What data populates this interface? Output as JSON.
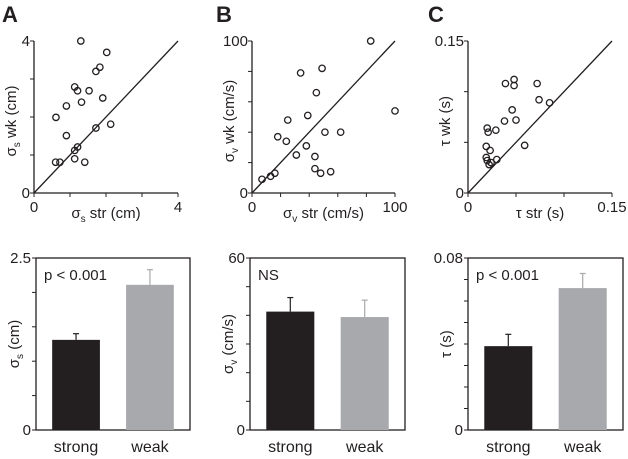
{
  "panel_labels": [
    "A",
    "B",
    "C"
  ],
  "chart_data": [
    {
      "type": "scatter",
      "panel": "A",
      "xlabel_symbol": "σ",
      "xlabel_sub": "s",
      "xlabel_rest": " str (cm)",
      "ylabel_symbol": "σ",
      "ylabel_sub": "s",
      "ylabel_rest": " wk (cm)",
      "xlim": [
        0,
        4
      ],
      "ylim": [
        0,
        4
      ],
      "xticks": [
        "0",
        "4"
      ],
      "yticks": [
        "0",
        "4"
      ],
      "minor_ticks": 4,
      "identity_line": true,
      "points": [
        [
          1.3,
          4.0
        ],
        [
          2.02,
          3.7
        ],
        [
          1.83,
          3.31
        ],
        [
          1.72,
          3.2
        ],
        [
          1.13,
          2.79
        ],
        [
          1.21,
          2.69
        ],
        [
          1.53,
          2.69
        ],
        [
          1.32,
          2.39
        ],
        [
          1.91,
          2.5
        ],
        [
          0.9,
          2.29
        ],
        [
          0.61,
          1.99
        ],
        [
          1.72,
          1.71
        ],
        [
          2.13,
          1.81
        ],
        [
          0.9,
          1.51
        ],
        [
          1.21,
          1.21
        ],
        [
          1.13,
          1.12
        ],
        [
          1.13,
          0.9
        ],
        [
          1.41,
          0.81
        ],
        [
          0.6,
          0.81
        ],
        [
          0.72,
          0.81
        ]
      ]
    },
    {
      "type": "scatter",
      "panel": "B",
      "xlabel_symbol": "σ",
      "xlabel_sub": "v",
      "xlabel_rest": " str (cm/s)",
      "ylabel_symbol": "σ",
      "ylabel_sub": "v",
      "ylabel_rest": " wk (cm/s)",
      "xlim": [
        0,
        100
      ],
      "ylim": [
        0,
        100
      ],
      "xticks": [
        "0",
        "100"
      ],
      "yticks": [
        "0",
        "100"
      ],
      "minor_ticks": 5,
      "identity_line": true,
      "points": [
        [
          83,
          100
        ],
        [
          100,
          54
        ],
        [
          34,
          79
        ],
        [
          49,
          82
        ],
        [
          45,
          66
        ],
        [
          25,
          48
        ],
        [
          39,
          51
        ],
        [
          18,
          37
        ],
        [
          24,
          34
        ],
        [
          51,
          40
        ],
        [
          62,
          40
        ],
        [
          38,
          31
        ],
        [
          31,
          25
        ],
        [
          44,
          24
        ],
        [
          44,
          16
        ],
        [
          48,
          13
        ],
        [
          55,
          14
        ],
        [
          16,
          13
        ],
        [
          13,
          11
        ],
        [
          7,
          9
        ]
      ]
    },
    {
      "type": "scatter",
      "panel": "C",
      "xlabel_symbol": "τ",
      "xlabel_sub": "",
      "xlabel_rest": " str (s)",
      "ylabel_symbol": "τ",
      "ylabel_sub": "",
      "ylabel_rest": " wk (s)",
      "xlim": [
        0,
        0.15
      ],
      "ylim": [
        0,
        0.15
      ],
      "xticks": [
        "0",
        "0.15"
      ],
      "yticks": [
        "0",
        "0.15"
      ],
      "minor_ticks": 3,
      "identity_line": true,
      "points": [
        [
          0.039,
          0.108
        ],
        [
          0.048,
          0.112
        ],
        [
          0.048,
          0.106
        ],
        [
          0.072,
          0.108
        ],
        [
          0.074,
          0.092
        ],
        [
          0.085,
          0.089
        ],
        [
          0.046,
          0.082
        ],
        [
          0.038,
          0.071
        ],
        [
          0.05,
          0.072
        ],
        [
          0.02,
          0.064
        ],
        [
          0.021,
          0.06
        ],
        [
          0.029,
          0.062
        ],
        [
          0.059,
          0.047
        ],
        [
          0.019,
          0.046
        ],
        [
          0.023,
          0.042
        ],
        [
          0.019,
          0.035
        ],
        [
          0.02,
          0.032
        ],
        [
          0.03,
          0.033
        ],
        [
          0.022,
          0.028
        ],
        [
          0.024,
          0.03
        ]
      ]
    },
    {
      "type": "bar",
      "panel": "A",
      "categories": [
        "strong",
        "weak"
      ],
      "values": [
        1.31,
        2.11
      ],
      "errors": [
        0.09,
        0.22
      ],
      "ylabel_symbol": "σ",
      "ylabel_sub": "s",
      "ylabel_rest": " (cm)",
      "ylim": [
        0,
        2.5
      ],
      "yticks": [
        "0",
        "2.5"
      ],
      "minor_ticks": 5,
      "annotation": "p < 0.001",
      "colors": [
        "#231f20",
        "#a7a9ac"
      ]
    },
    {
      "type": "bar",
      "panel": "B",
      "categories": [
        "strong",
        "weak"
      ],
      "values": [
        41.3,
        39.4
      ],
      "errors": [
        4.9,
        5.9
      ],
      "ylabel_symbol": "σ",
      "ylabel_sub": "v",
      "ylabel_rest": " (cm/s)",
      "ylim": [
        0,
        60
      ],
      "yticks": [
        "0",
        "60"
      ],
      "minor_ticks": 6,
      "annotation": "NS",
      "colors": [
        "#231f20",
        "#a7a9ac"
      ]
    },
    {
      "type": "bar",
      "panel": "C",
      "categories": [
        "strong",
        "weak"
      ],
      "values": [
        0.039,
        0.066
      ],
      "errors": [
        0.0055,
        0.0068
      ],
      "ylabel_symbol": "τ",
      "ylabel_sub": "",
      "ylabel_rest": " (s)",
      "ylim": [
        0,
        0.08
      ],
      "yticks": [
        "0",
        "0.08"
      ],
      "minor_ticks": 8,
      "annotation": "p < 0.001",
      "colors": [
        "#231f20",
        "#a7a9ac"
      ]
    }
  ]
}
